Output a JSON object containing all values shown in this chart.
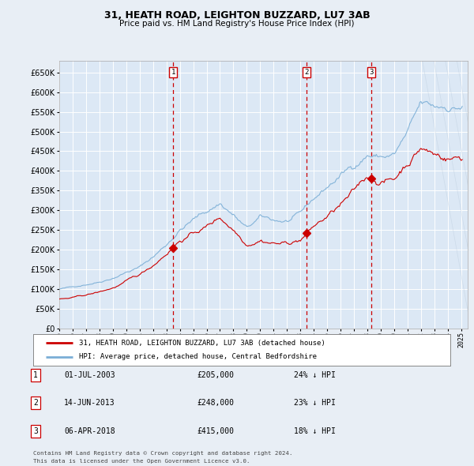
{
  "title": "31, HEATH ROAD, LEIGHTON BUZZARD, LU7 3AB",
  "subtitle": "Price paid vs. HM Land Registry's House Price Index (HPI)",
  "ylim": [
    0,
    680000
  ],
  "ylabel_ticks": [
    0,
    50000,
    100000,
    150000,
    200000,
    250000,
    300000,
    350000,
    400000,
    450000,
    500000,
    550000,
    600000,
    650000
  ],
  "xlim_start": 1995.0,
  "xlim_end": 2025.5,
  "background_color": "#e8eef5",
  "plot_bg_color": "#dce8f5",
  "grid_color": "#c8d8e8",
  "red_line_color": "#cc0000",
  "blue_line_color": "#7aaed6",
  "sale_marker_color": "#cc0000",
  "sales": [
    {
      "num": 1,
      "date_str": "01-JUL-2003",
      "date_x": 2003.5,
      "price": 205000,
      "pct": "24%",
      "dir": "↓"
    },
    {
      "num": 2,
      "date_str": "14-JUN-2013",
      "date_x": 2013.45,
      "price": 248000,
      "pct": "23%",
      "dir": "↓"
    },
    {
      "num": 3,
      "date_str": "06-APR-2018",
      "date_x": 2018.27,
      "price": 415000,
      "pct": "18%",
      "dir": "↓"
    }
  ],
  "legend_label_red": "31, HEATH ROAD, LEIGHTON BUZZARD, LU7 3AB (detached house)",
  "legend_label_blue": "HPI: Average price, detached house, Central Bedfordshire",
  "footer_line1": "Contains HM Land Registry data © Crown copyright and database right 2024.",
  "footer_line2": "This data is licensed under the Open Government Licence v3.0."
}
